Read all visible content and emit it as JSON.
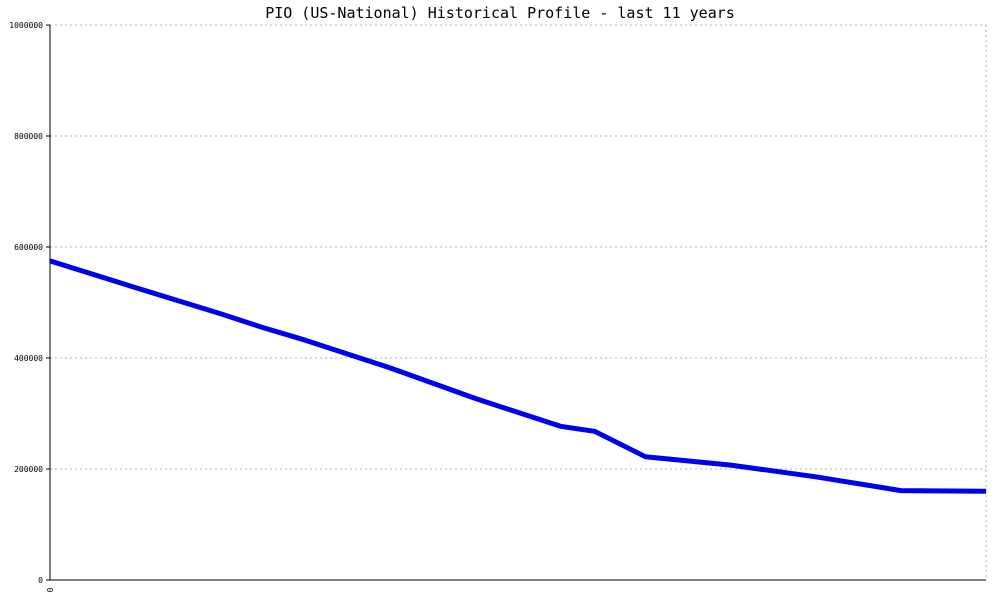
{
  "chart_data": {
    "type": "line",
    "title": "PIO (US-National) Historical Profile - last 11 years",
    "xlabel": "",
    "ylabel": "",
    "ylim": [
      0,
      1000000
    ],
    "y_ticks": [
      0,
      200000,
      400000,
      600000,
      800000,
      1000000
    ],
    "y_tick_labels": [
      "0",
      "200000",
      "400000",
      "600000",
      "800000",
      "1000000"
    ],
    "x_range": [
      0,
      11
    ],
    "x_tick_labels": [
      "0"
    ],
    "grid": true,
    "legend": "none",
    "series": [
      {
        "color": "#0000ee",
        "x": [
          0,
          1,
          2,
          2.5,
          3,
          4,
          5,
          6,
          6.4,
          7,
          8,
          9,
          10,
          11
        ],
        "y": [
          575000,
          527000,
          480000,
          455000,
          432000,
          382000,
          327000,
          277000,
          268000,
          222000,
          207000,
          186000,
          161000,
          160000
        ]
      }
    ]
  }
}
